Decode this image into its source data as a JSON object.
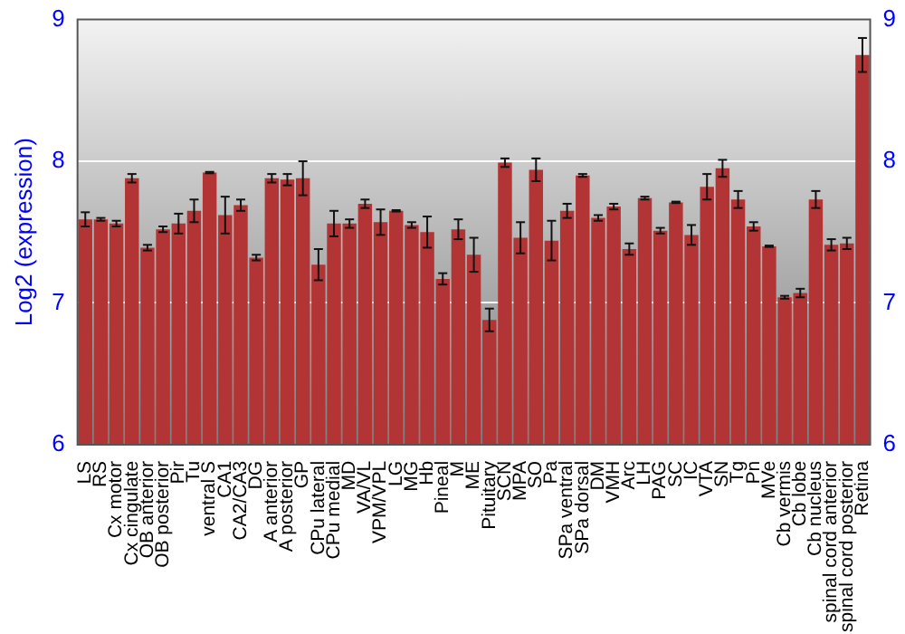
{
  "chart_data": {
    "type": "bar",
    "ylabel": "Log2 (expression)",
    "categories": [
      "LS",
      "RS",
      "Cx motor",
      "Cx cingulate",
      "OB anterior",
      "OB posterior",
      "Pir",
      "Tu",
      "ventral S",
      "CA1",
      "CA2/CA3",
      "DG",
      "A anterior",
      "A posterior",
      "GP",
      "CPu lateral",
      "CPu medial",
      "MD",
      "VA/VL",
      "VPM/VPL",
      "LG",
      "MG",
      "Hb",
      "Pineal",
      "M",
      "ME",
      "Pituitary",
      "SCN",
      "MPA",
      "SO",
      "Pa",
      "SPa ventral",
      "SPa dorsal",
      "DM",
      "VMH",
      "Arc",
      "LH",
      "PAG",
      "SC",
      "IC",
      "VTA",
      "SN",
      "Tg",
      "Pn",
      "MVe",
      "Cb vermis",
      "Cb lobe",
      "Cb nucleus",
      "spinal cord anterior",
      "spinal cord posterior",
      "Retina"
    ],
    "values": [
      7.59,
      7.59,
      7.56,
      7.88,
      7.39,
      7.52,
      7.56,
      7.65,
      7.92,
      7.62,
      7.69,
      7.32,
      7.88,
      7.87,
      7.88,
      7.27,
      7.56,
      7.56,
      7.7,
      7.57,
      7.65,
      7.55,
      7.5,
      7.17,
      7.52,
      7.34,
      6.88,
      7.99,
      7.46,
      7.94,
      7.44,
      7.65,
      7.9,
      7.6,
      7.68,
      7.38,
      7.74,
      7.51,
      7.71,
      7.48,
      7.82,
      7.95,
      7.73,
      7.54,
      7.4,
      7.04,
      7.07,
      7.73,
      7.41,
      7.42,
      8.75
    ],
    "errors": [
      0.05,
      0.01,
      0.02,
      0.03,
      0.02,
      0.02,
      0.07,
      0.08,
      0.005,
      0.13,
      0.04,
      0.02,
      0.03,
      0.04,
      0.12,
      0.11,
      0.09,
      0.03,
      0.03,
      0.09,
      0.005,
      0.02,
      0.11,
      0.04,
      0.07,
      0.12,
      0.08,
      0.03,
      0.11,
      0.08,
      0.14,
      0.05,
      0.01,
      0.02,
      0.02,
      0.04,
      0.01,
      0.02,
      0.005,
      0.07,
      0.09,
      0.06,
      0.06,
      0.03,
      0.005,
      0.01,
      0.03,
      0.06,
      0.04,
      0.04,
      0.12
    ],
    "color": "#b33434",
    "ylim": [
      6,
      9
    ],
    "yticks": [
      6,
      7,
      8,
      9
    ],
    "y2lim": [
      6,
      9
    ],
    "y2ticks": [
      6,
      7,
      8,
      9
    ],
    "grid": "y",
    "legend": false
  }
}
